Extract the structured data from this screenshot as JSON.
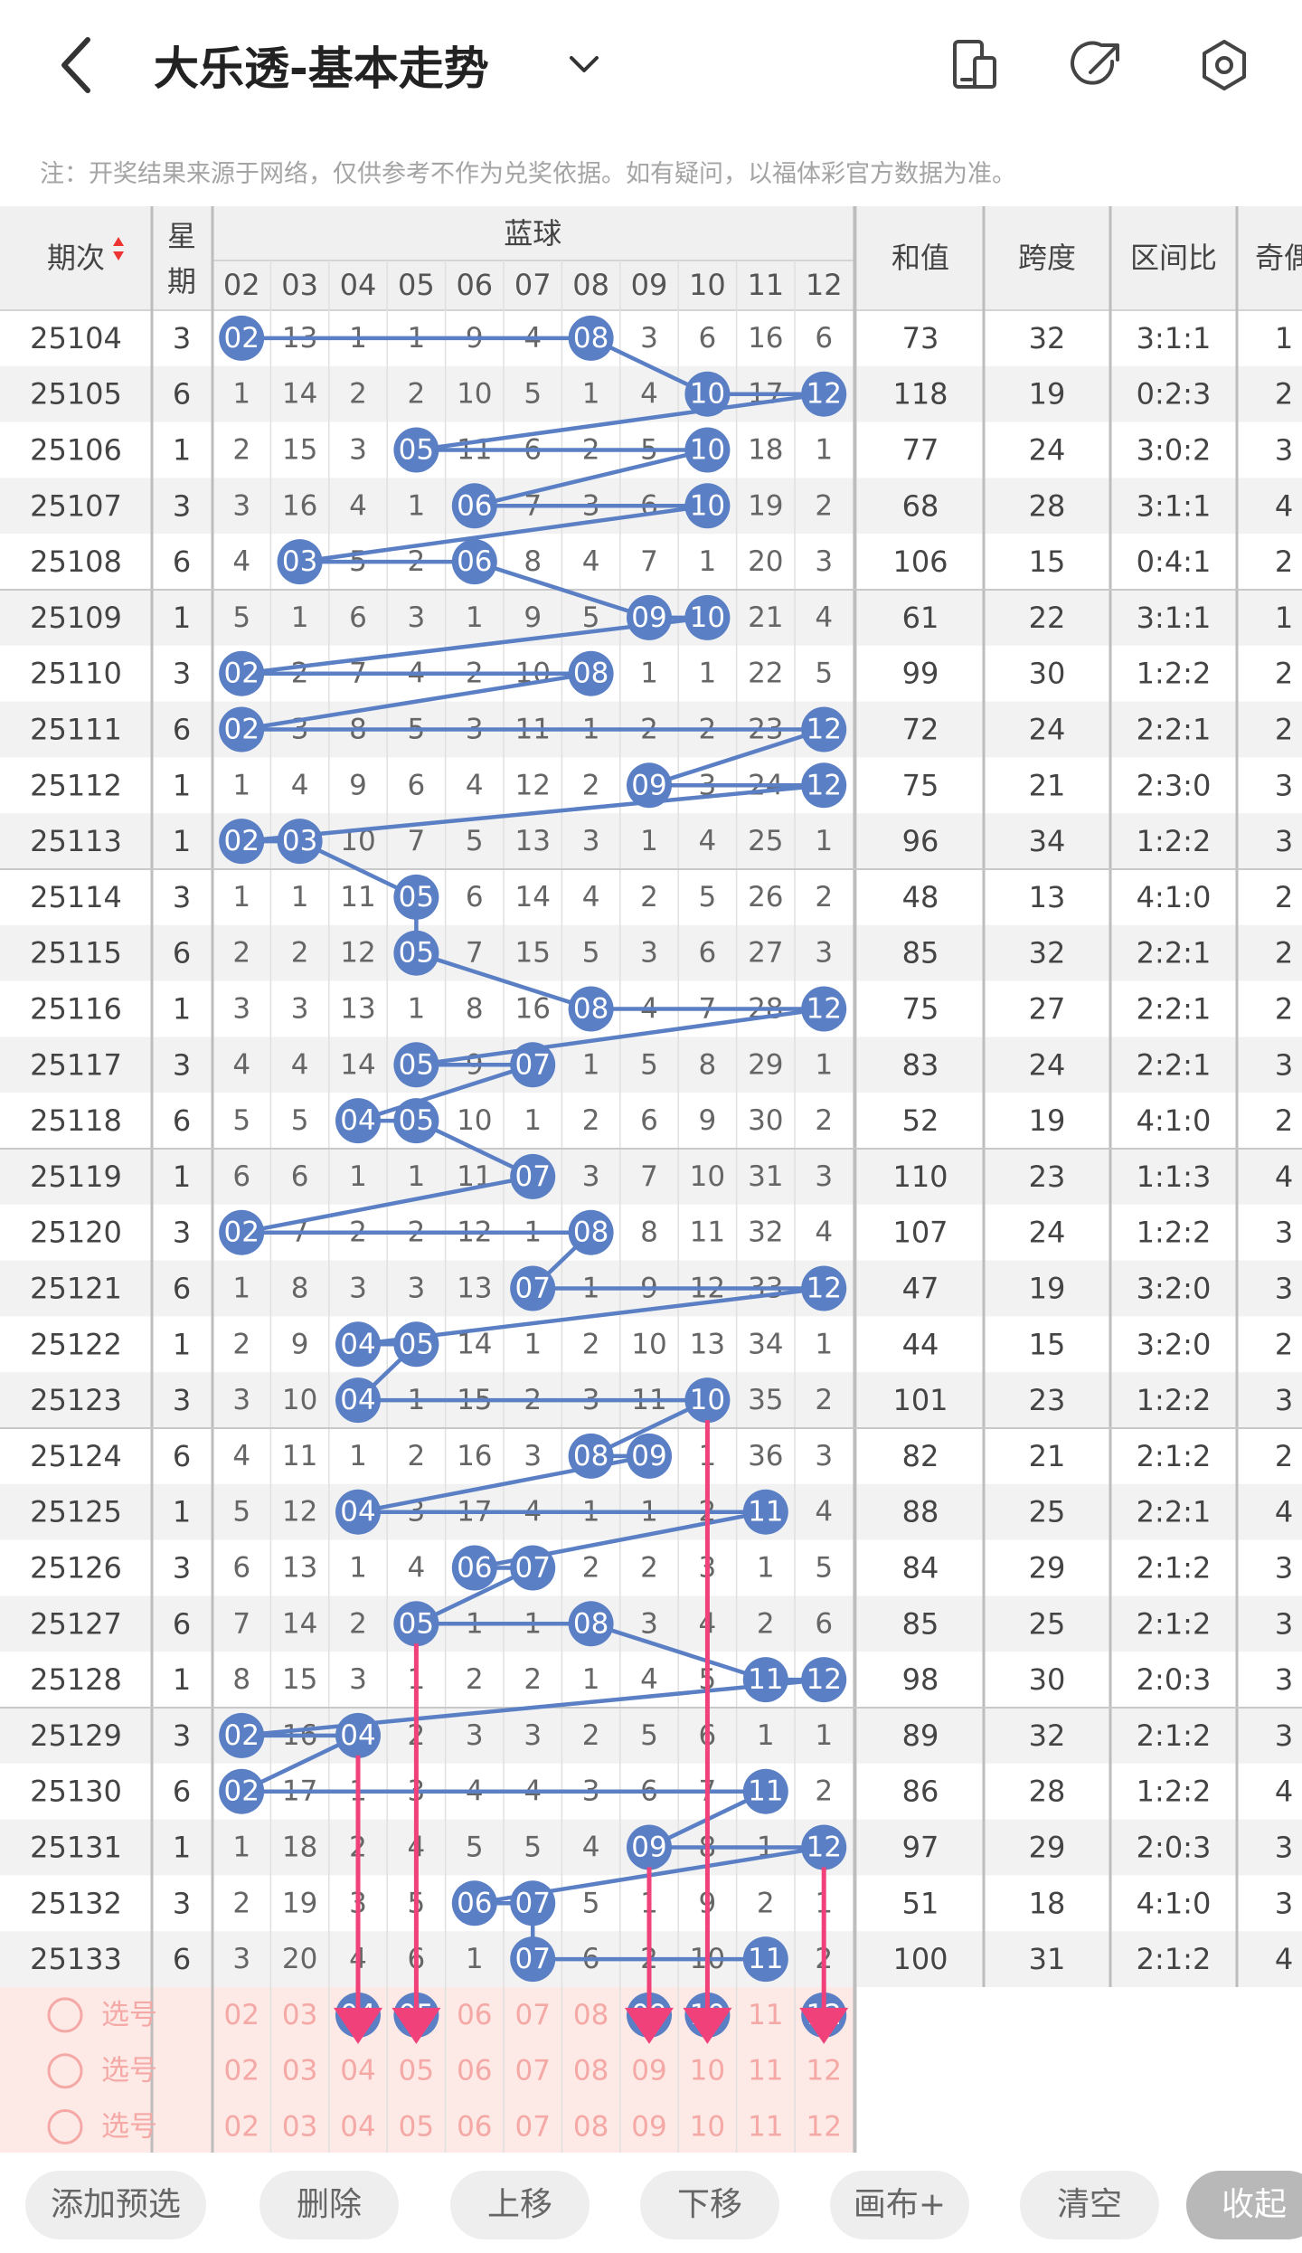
{
  "header": {
    "title": "大乐透-基本走势",
    "back_icon": "chevron-left-icon",
    "dropdown_icon": "chevron-down-icon",
    "icons": [
      "phone-layout-icon",
      "share-arrow-icon",
      "settings-hexagon-icon"
    ]
  },
  "note": "注：开奖结果来源于网络，仅供参考不作为兑奖依据。如有疑问，以福体彩官方数据为准。",
  "table": {
    "columns": {
      "period": "期次",
      "weekday": "星期",
      "blue_group": "蓝球",
      "sum": "和值",
      "span": "跨度",
      "interval": "区间比",
      "odd_even": "奇偶"
    },
    "ball_numbers": [
      "02",
      "03",
      "04",
      "05",
      "06",
      "07",
      "08",
      "09",
      "10",
      "11",
      "12"
    ],
    "rows": [
      {
        "p": "25104",
        "w": "3",
        "o": [
          0,
          13,
          1,
          1,
          9,
          4,
          0,
          3,
          6,
          16,
          6
        ],
        "s": "73",
        "sp": "32",
        "r": "3:1:1",
        "oe": "1"
      },
      {
        "p": "25105",
        "w": "6",
        "o": [
          1,
          14,
          2,
          2,
          10,
          5,
          1,
          4,
          0,
          17,
          0
        ],
        "s": "118",
        "sp": "19",
        "r": "0:2:3",
        "oe": "2"
      },
      {
        "p": "25106",
        "w": "1",
        "o": [
          2,
          15,
          3,
          0,
          11,
          6,
          2,
          5,
          0,
          18,
          1
        ],
        "s": "77",
        "sp": "24",
        "r": "3:0:2",
        "oe": "3"
      },
      {
        "p": "25107",
        "w": "3",
        "o": [
          3,
          16,
          4,
          1,
          0,
          7,
          3,
          6,
          0,
          19,
          2
        ],
        "s": "68",
        "sp": "28",
        "r": "3:1:1",
        "oe": "4"
      },
      {
        "p": "25108",
        "w": "6",
        "o": [
          4,
          0,
          5,
          2,
          0,
          8,
          4,
          7,
          1,
          20,
          3
        ],
        "s": "106",
        "sp": "15",
        "r": "0:4:1",
        "oe": "2"
      },
      {
        "p": "25109",
        "w": "1",
        "o": [
          5,
          1,
          6,
          3,
          1,
          9,
          5,
          0,
          0,
          21,
          4
        ],
        "s": "61",
        "sp": "22",
        "r": "3:1:1",
        "oe": "1"
      },
      {
        "p": "25110",
        "w": "3",
        "o": [
          0,
          2,
          7,
          4,
          2,
          10,
          0,
          1,
          1,
          22,
          5
        ],
        "s": "99",
        "sp": "30",
        "r": "1:2:2",
        "oe": "2"
      },
      {
        "p": "25111",
        "w": "6",
        "o": [
          0,
          3,
          8,
          5,
          3,
          11,
          1,
          2,
          2,
          23,
          0
        ],
        "s": "72",
        "sp": "24",
        "r": "2:2:1",
        "oe": "2"
      },
      {
        "p": "25112",
        "w": "1",
        "o": [
          1,
          4,
          9,
          6,
          4,
          12,
          2,
          0,
          3,
          24,
          0
        ],
        "s": "75",
        "sp": "21",
        "r": "2:3:0",
        "oe": "3"
      },
      {
        "p": "25113",
        "w": "1",
        "o": [
          0,
          0,
          10,
          7,
          5,
          13,
          3,
          1,
          4,
          25,
          1
        ],
        "s": "96",
        "sp": "34",
        "r": "1:2:2",
        "oe": "3"
      },
      {
        "p": "25114",
        "w": "3",
        "o": [
          1,
          1,
          11,
          0,
          6,
          14,
          4,
          2,
          5,
          26,
          2
        ],
        "s": "48",
        "sp": "13",
        "r": "4:1:0",
        "oe": "2"
      },
      {
        "p": "25115",
        "w": "6",
        "o": [
          2,
          2,
          12,
          0,
          7,
          15,
          5,
          3,
          6,
          27,
          3
        ],
        "s": "85",
        "sp": "32",
        "r": "2:2:1",
        "oe": "2"
      },
      {
        "p": "25116",
        "w": "1",
        "o": [
          3,
          3,
          13,
          1,
          8,
          16,
          0,
          4,
          7,
          28,
          0
        ],
        "s": "75",
        "sp": "27",
        "r": "2:2:1",
        "oe": "2"
      },
      {
        "p": "25117",
        "w": "3",
        "o": [
          4,
          4,
          14,
          0,
          9,
          0,
          1,
          5,
          8,
          29,
          1
        ],
        "s": "83",
        "sp": "24",
        "r": "2:2:1",
        "oe": "3"
      },
      {
        "p": "25118",
        "w": "6",
        "o": [
          5,
          5,
          0,
          0,
          10,
          1,
          2,
          6,
          9,
          30,
          2
        ],
        "s": "52",
        "sp": "19",
        "r": "4:1:0",
        "oe": "2"
      },
      {
        "p": "25119",
        "w": "1",
        "o": [
          6,
          6,
          1,
          1,
          11,
          0,
          3,
          7,
          10,
          31,
          3
        ],
        "s": "110",
        "sp": "23",
        "r": "1:1:3",
        "oe": "4"
      },
      {
        "p": "25120",
        "w": "3",
        "o": [
          0,
          7,
          2,
          2,
          12,
          1,
          0,
          8,
          11,
          32,
          4
        ],
        "s": "107",
        "sp": "24",
        "r": "1:2:2",
        "oe": "3"
      },
      {
        "p": "25121",
        "w": "6",
        "o": [
          1,
          8,
          3,
          3,
          13,
          0,
          1,
          9,
          12,
          33,
          0
        ],
        "s": "47",
        "sp": "19",
        "r": "3:2:0",
        "oe": "3"
      },
      {
        "p": "25122",
        "w": "1",
        "o": [
          2,
          9,
          0,
          0,
          14,
          1,
          2,
          10,
          13,
          34,
          1
        ],
        "s": "44",
        "sp": "15",
        "r": "3:2:0",
        "oe": "2"
      },
      {
        "p": "25123",
        "w": "3",
        "o": [
          3,
          10,
          0,
          1,
          15,
          2,
          3,
          11,
          0,
          35,
          2
        ],
        "s": "101",
        "sp": "23",
        "r": "1:2:2",
        "oe": "3"
      },
      {
        "p": "25124",
        "w": "6",
        "o": [
          4,
          11,
          1,
          2,
          16,
          3,
          0,
          0,
          1,
          36,
          3
        ],
        "s": "82",
        "sp": "21",
        "r": "2:1:2",
        "oe": "2"
      },
      {
        "p": "25125",
        "w": "1",
        "o": [
          5,
          12,
          0,
          3,
          17,
          4,
          1,
          1,
          2,
          0,
          4
        ],
        "s": "88",
        "sp": "25",
        "r": "2:2:1",
        "oe": "4"
      },
      {
        "p": "25126",
        "w": "3",
        "o": [
          6,
          13,
          1,
          4,
          0,
          0,
          2,
          2,
          3,
          1,
          5
        ],
        "s": "84",
        "sp": "29",
        "r": "2:1:2",
        "oe": "3"
      },
      {
        "p": "25127",
        "w": "6",
        "o": [
          7,
          14,
          2,
          0,
          1,
          1,
          0,
          3,
          4,
          2,
          6
        ],
        "s": "85",
        "sp": "25",
        "r": "2:1:2",
        "oe": "3"
      },
      {
        "p": "25128",
        "w": "1",
        "o": [
          8,
          15,
          3,
          1,
          2,
          2,
          1,
          4,
          5,
          0,
          0
        ],
        "s": "98",
        "sp": "30",
        "r": "2:0:3",
        "oe": "3"
      },
      {
        "p": "25129",
        "w": "3",
        "o": [
          0,
          16,
          0,
          2,
          3,
          3,
          2,
          5,
          6,
          1,
          1
        ],
        "s": "89",
        "sp": "32",
        "r": "2:1:2",
        "oe": "3"
      },
      {
        "p": "25130",
        "w": "6",
        "o": [
          0,
          17,
          1,
          3,
          4,
          4,
          3,
          6,
          7,
          0,
          2
        ],
        "s": "86",
        "sp": "28",
        "r": "1:2:2",
        "oe": "4"
      },
      {
        "p": "25131",
        "w": "1",
        "o": [
          1,
          18,
          2,
          4,
          5,
          5,
          4,
          0,
          8,
          1,
          0
        ],
        "s": "97",
        "sp": "29",
        "r": "2:0:3",
        "oe": "3"
      },
      {
        "p": "25132",
        "w": "3",
        "o": [
          2,
          19,
          3,
          5,
          0,
          0,
          5,
          1,
          9,
          2,
          1
        ],
        "s": "51",
        "sp": "18",
        "r": "4:1:0",
        "oe": "3"
      },
      {
        "p": "25133",
        "w": "6",
        "o": [
          3,
          20,
          4,
          6,
          1,
          0,
          6,
          2,
          10,
          0,
          2
        ],
        "s": "100",
        "sp": "31",
        "r": "2:1:2",
        "oe": "4"
      }
    ],
    "select_rows": [
      {
        "label": "选号",
        "picked": [
          "04",
          "05",
          "09",
          "10",
          "12"
        ]
      },
      {
        "label": "选号",
        "picked": []
      },
      {
        "label": "选号",
        "picked": []
      }
    ]
  },
  "colors": {
    "ball_blue": "#5a7fc4",
    "line_blue": "#5a7fc4",
    "arrow_pink": "#f0417a",
    "select_bg": "#fde9e5",
    "select_text": "#f4a9a6",
    "alt_row": "#f2f2f2"
  },
  "bottom_bar": {
    "buttons": [
      "添加预选",
      "删除",
      "上移",
      "下移",
      "画布+",
      "清空",
      "收起"
    ]
  }
}
